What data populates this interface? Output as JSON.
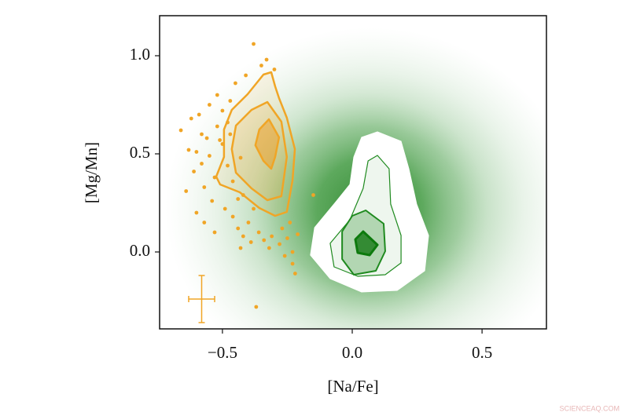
{
  "chart_data": {
    "type": "scatter",
    "xlabel": "[Na/Fe]",
    "ylabel": "[Mg/Mn]",
    "xlim": [
      -0.742,
      0.748
    ],
    "ylim": [
      -0.392,
      1.204
    ],
    "xticks": [
      {
        "value": -0.5,
        "label": "−0.5"
      },
      {
        "value": 0.0,
        "label": "0.0"
      },
      {
        "value": 0.5,
        "label": "0.5"
      }
    ],
    "yticks": [
      {
        "value": 0.0,
        "label": "0.0"
      },
      {
        "value": 0.5,
        "label": "0.5"
      },
      {
        "value": 1.0,
        "label": "1.0"
      }
    ],
    "points": {
      "color": "#f0a526",
      "x": [
        -0.38,
        -0.37,
        -0.15,
        -0.22,
        -0.23,
        -0.62,
        -0.6,
        -0.66,
        -0.58,
        -0.55,
        -0.52,
        -0.5,
        -0.48,
        -0.56,
        -0.53,
        -0.45,
        -0.47,
        -0.57,
        -0.61,
        -0.54,
        -0.49,
        -0.46,
        -0.44,
        -0.42,
        -0.4,
        -0.43,
        -0.39,
        -0.36,
        -0.34,
        -0.32,
        -0.5,
        -0.58,
        -0.63,
        -0.64,
        -0.59,
        -0.52,
        -0.48,
        -0.46,
        -0.41,
        -0.35,
        -0.33,
        -0.3,
        -0.27,
        -0.25,
        -0.24,
        -0.28,
        -0.31,
        -0.44,
        -0.55,
        -0.51,
        -0.47,
        -0.6,
        -0.57,
        -0.53,
        -0.42,
        -0.38,
        -0.26,
        -0.23,
        -0.21,
        -0.43
      ],
      "y": [
        1.06,
        -0.28,
        0.29,
        -0.11,
        0.0,
        0.68,
        0.51,
        0.62,
        0.45,
        0.75,
        0.8,
        0.72,
        0.66,
        0.58,
        0.38,
        0.86,
        0.77,
        0.33,
        0.41,
        0.26,
        0.22,
        0.18,
        0.12,
        0.08,
        0.15,
        0.02,
        0.05,
        0.1,
        0.06,
        0.02,
        0.55,
        0.6,
        0.52,
        0.31,
        0.7,
        0.64,
        0.44,
        0.36,
        0.9,
        0.95,
        0.98,
        0.93,
        0.12,
        0.07,
        0.15,
        0.04,
        0.08,
        0.27,
        0.49,
        0.57,
        0.6,
        0.2,
        0.15,
        0.1,
        0.29,
        0.22,
        -0.02,
        -0.06,
        0.09,
        0.48
      ]
    },
    "contours": [
      {
        "color": "#f0a526",
        "width": 2.5,
        "fill": "rgba(240,165,38,0.10)",
        "x": [
          -0.312,
          -0.297,
          -0.282,
          -0.252,
          -0.221,
          -0.23,
          -0.252,
          -0.297,
          -0.358,
          -0.433,
          -0.509,
          -0.524,
          -0.494,
          -0.494,
          -0.464,
          -0.403,
          -0.342
        ],
        "y": [
          0.916,
          0.844,
          0.784,
          0.684,
          0.524,
          0.364,
          0.204,
          0.184,
          0.224,
          0.304,
          0.344,
          0.384,
          0.484,
          0.624,
          0.724,
          0.804,
          0.904
        ]
      },
      {
        "color": "#f0a526",
        "width": 2.5,
        "fill": "rgba(240,165,38,0.18)",
        "x": [
          -0.327,
          -0.273,
          -0.252,
          -0.273,
          -0.327,
          -0.388,
          -0.448,
          -0.464,
          -0.448,
          -0.388
        ],
        "y": [
          0.764,
          0.664,
          0.484,
          0.284,
          0.264,
          0.324,
          0.404,
          0.524,
          0.644,
          0.724
        ]
      },
      {
        "color": "#f0a526",
        "width": 2.5,
        "fill": "rgba(240,150,20,0.45)",
        "x": [
          -0.321,
          -0.282,
          -0.297,
          -0.312,
          -0.342,
          -0.373,
          -0.358
        ],
        "y": [
          0.676,
          0.584,
          0.484,
          0.424,
          0.464,
          0.544,
          0.624
        ]
      },
      {
        "color": "#ffffff",
        "width": 1,
        "fill": "#ffffff",
        "x": [
          0.097,
          0.188,
          0.218,
          0.248,
          0.294,
          0.279,
          0.173,
          0.036,
          -0.085,
          -0.161,
          -0.145,
          -0.07,
          -0.009,
          0.006,
          0.036
        ],
        "y": [
          0.612,
          0.564,
          0.424,
          0.244,
          0.084,
          -0.096,
          -0.196,
          -0.204,
          -0.136,
          -0.016,
          0.124,
          0.244,
          0.344,
          0.484,
          0.584
        ]
      },
      {
        "color": "#1f8a1f",
        "width": 1.2,
        "fill": "rgba(40,140,40,0.08)",
        "x": [
          0.097,
          0.142,
          0.148,
          0.188,
          0.188,
          0.127,
          0.021,
          -0.07,
          -0.085,
          -0.009,
          0.042,
          0.061
        ],
        "y": [
          0.492,
          0.424,
          0.244,
          0.084,
          -0.056,
          -0.116,
          -0.124,
          -0.076,
          0.044,
          0.164,
          0.324,
          0.464
        ]
      },
      {
        "color": "#1f8a1f",
        "width": 2,
        "fill": "rgba(40,140,40,0.30)",
        "x": [
          0.052,
          0.121,
          0.127,
          0.091,
          0.006,
          -0.039,
          -0.039,
          0.0
        ],
        "y": [
          0.212,
          0.144,
          0.004,
          -0.096,
          -0.116,
          -0.036,
          0.104,
          0.184
        ]
      },
      {
        "color": "#0d7a0d",
        "width": 3,
        "fill": "rgba(20,120,20,0.8)",
        "x": [
          0.042,
          0.097,
          0.067,
          0.021,
          0.012
        ],
        "y": [
          0.104,
          0.036,
          -0.016,
          -0.004,
          0.064
        ]
      }
    ],
    "errorbar": {
      "color": "#f0a526",
      "x": -0.58,
      "y": -0.24,
      "xerr": 0.05,
      "yerr": 0.12
    },
    "watermark": "SCIENCEAQ.COM"
  }
}
